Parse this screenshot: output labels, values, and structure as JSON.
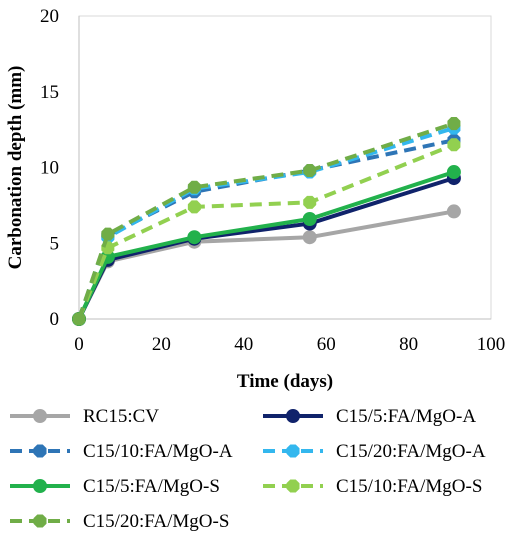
{
  "chart_data": {
    "type": "line",
    "title": "",
    "xlabel": "Time (days)",
    "ylabel": "Carbonation depth (mm)",
    "xlim": [
      0,
      100
    ],
    "ylim": [
      0,
      20
    ],
    "x_ticks": [
      "0",
      "20",
      "40",
      "60",
      "80",
      "100"
    ],
    "y_ticks": [
      "0",
      "5",
      "10",
      "15",
      "20"
    ],
    "x_tick_values": [
      0,
      20,
      40,
      60,
      80,
      100
    ],
    "y_tick_values": [
      0,
      5,
      10,
      15,
      20
    ],
    "grid": false,
    "legend_position": "bottom",
    "x": [
      0,
      7,
      28,
      56,
      91
    ],
    "series": [
      {
        "name": "RC15:CV",
        "values": [
          0,
          3.8,
          5.1,
          5.4,
          7.1
        ],
        "color": "#a6a6a6",
        "dash": "solid",
        "marker": "circle"
      },
      {
        "name": "C15/5:FA/MgO-A",
        "values": [
          0,
          3.9,
          5.3,
          6.3,
          9.3
        ],
        "color": "#10236b",
        "dash": "solid",
        "marker": "circle"
      },
      {
        "name": "C15/10:FA/MgO-A",
        "values": [
          0,
          5.5,
          8.4,
          9.8,
          11.8
        ],
        "color": "#2e75b6",
        "dash": "dashed",
        "marker": "octagon"
      },
      {
        "name": "C15/20:FA/MgO-A",
        "values": [
          0,
          5.4,
          8.6,
          9.7,
          12.6
        ],
        "color": "#33b7ee",
        "dash": "dashed",
        "marker": "octagon"
      },
      {
        "name": "C15/5:FA/MgO-S",
        "values": [
          0,
          4.1,
          5.4,
          6.6,
          9.7
        ],
        "color": "#22b14c",
        "dash": "solid",
        "marker": "circle"
      },
      {
        "name": "C15/10:FA/MgO-S",
        "values": [
          0,
          4.7,
          7.4,
          7.7,
          11.5
        ],
        "color": "#92d050",
        "dash": "dashed",
        "marker": "octagon"
      },
      {
        "name": "C15/20:FA/MgO-S",
        "values": [
          0,
          5.6,
          8.7,
          9.8,
          12.9
        ],
        "color": "#70ad47",
        "dash": "dashed",
        "marker": "octagon"
      }
    ]
  }
}
